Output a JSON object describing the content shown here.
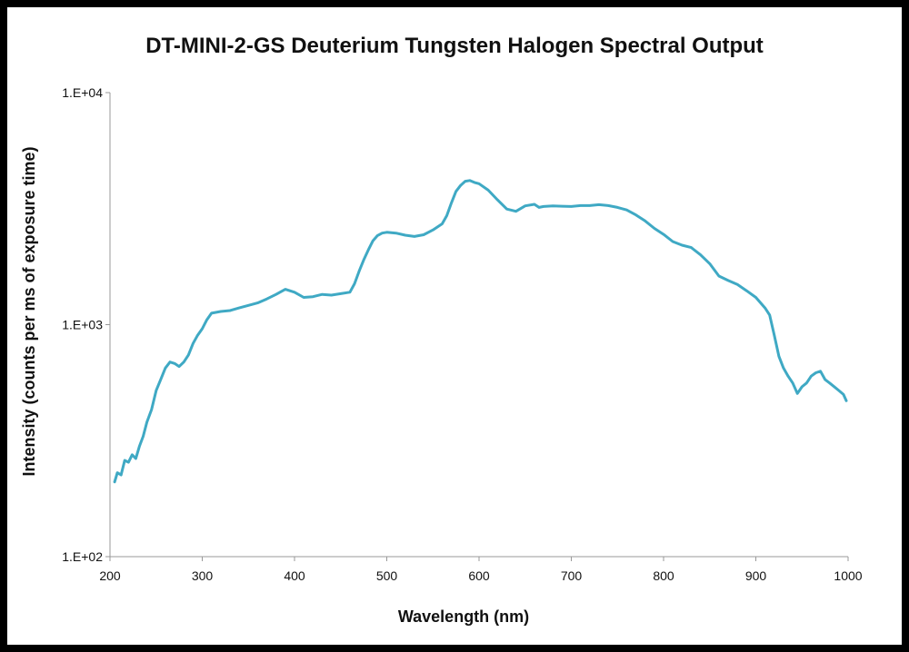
{
  "chart_data": {
    "type": "line",
    "title": "DT-MINI-2-GS Deuterium Tungsten Halogen Spectral Output",
    "xlabel": "Wavelength (nm)",
    "ylabel": "Intensity (counts per ms of exposure time)",
    "xlim": [
      200,
      1000
    ],
    "ylim": [
      100,
      10000
    ],
    "yscale": "log",
    "x_ticks": [
      200,
      300,
      400,
      500,
      600,
      700,
      800,
      900,
      1000
    ],
    "x_tick_labels": [
      "200",
      "300",
      "400",
      "500",
      "600",
      "700",
      "800",
      "900",
      "1000"
    ],
    "y_ticks": [
      100,
      1000,
      10000
    ],
    "y_tick_labels": [
      "1.E+02",
      "1.E+03",
      "1.E+04"
    ],
    "grid": false,
    "legend": "none",
    "color": "#3fa9c4",
    "series": [
      {
        "x": [
          205,
          208,
          212,
          216,
          220,
          224,
          228,
          232,
          236,
          240,
          245,
          250,
          255,
          260,
          265,
          270,
          275,
          280,
          285,
          290,
          295,
          300,
          305,
          310,
          320,
          330,
          340,
          350,
          360,
          370,
          380,
          390,
          400,
          410,
          420,
          430,
          440,
          450,
          460,
          465,
          470,
          475,
          480,
          485,
          490,
          495,
          500,
          510,
          520,
          530,
          540,
          550,
          560,
          565,
          570,
          575,
          580,
          585,
          590,
          595,
          600,
          610,
          620,
          630,
          640,
          650,
          660,
          665,
          670,
          680,
          690,
          700,
          710,
          720,
          730,
          740,
          750,
          760,
          770,
          780,
          790,
          800,
          810,
          820,
          830,
          840,
          850,
          860,
          870,
          880,
          890,
          900,
          910,
          915,
          920,
          925,
          930,
          935,
          940,
          945,
          950,
          955,
          960,
          965,
          970,
          975,
          980,
          985,
          990,
          995,
          998
        ],
        "y": [
          210,
          230,
          225,
          260,
          255,
          275,
          265,
          300,
          330,
          380,
          430,
          520,
          580,
          650,
          690,
          680,
          660,
          690,
          740,
          830,
          900,
          960,
          1050,
          1120,
          1140,
          1150,
          1180,
          1210,
          1240,
          1290,
          1350,
          1420,
          1380,
          1310,
          1320,
          1350,
          1340,
          1360,
          1380,
          1500,
          1700,
          1900,
          2100,
          2300,
          2420,
          2480,
          2500,
          2480,
          2430,
          2400,
          2440,
          2560,
          2720,
          2950,
          3350,
          3750,
          3980,
          4150,
          4180,
          4100,
          4050,
          3800,
          3450,
          3150,
          3080,
          3250,
          3300,
          3200,
          3230,
          3250,
          3240,
          3230,
          3260,
          3260,
          3290,
          3260,
          3200,
          3120,
          2970,
          2800,
          2600,
          2450,
          2280,
          2200,
          2150,
          2000,
          1830,
          1620,
          1550,
          1490,
          1400,
          1310,
          1180,
          1100,
          900,
          730,
          650,
          600,
          560,
          505,
          540,
          560,
          600,
          620,
          630,
          580,
          560,
          540,
          520,
          500,
          470
        ]
      }
    ]
  }
}
